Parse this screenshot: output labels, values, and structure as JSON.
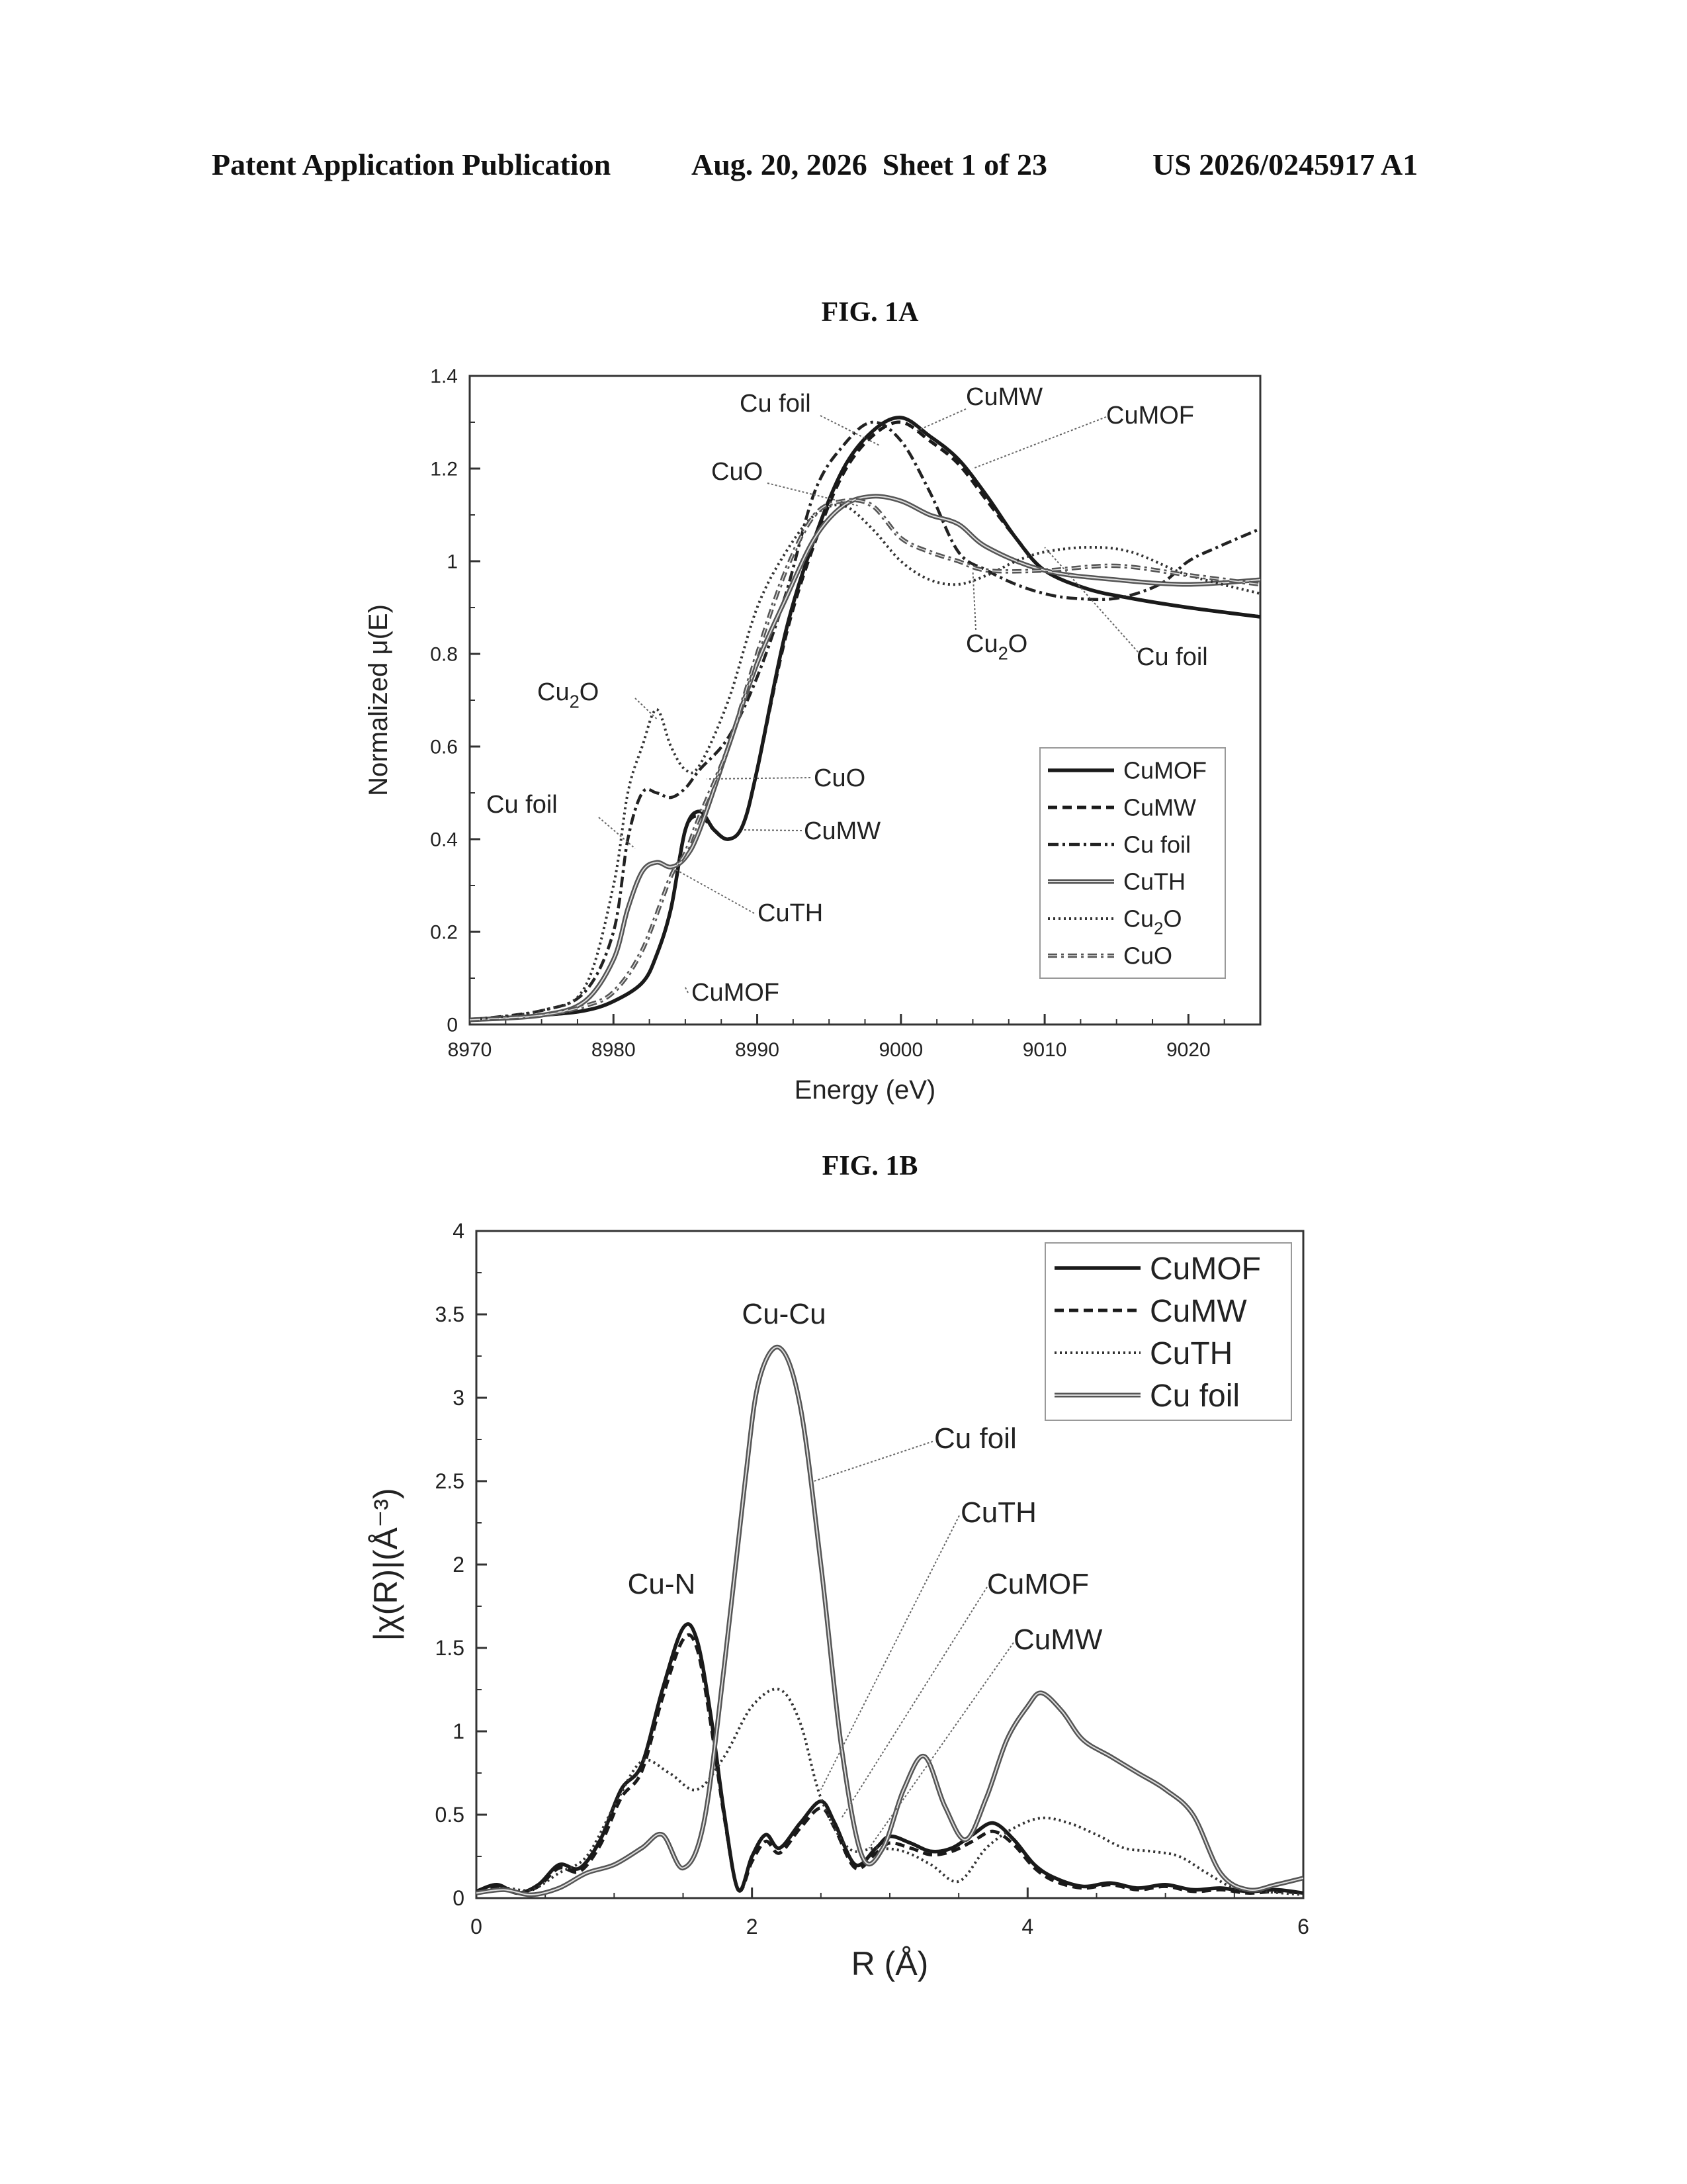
{
  "header": {
    "left": "Patent Application Publication",
    "center": "Aug. 20, 2026  Sheet 1 of 23",
    "right": "US 2026/0245917 A1"
  },
  "figures": {
    "fig1a_title": "FIG. 1A",
    "fig1b_title": "FIG. 1B"
  },
  "chart_data": [
    {
      "id": "fig1a",
      "type": "line",
      "xlabel": "Energy (eV)",
      "ylabel": "Normalized μ(E)",
      "xlim": [
        8970,
        9025
      ],
      "ylim": [
        0,
        1.4
      ],
      "xticks": [
        8970,
        8980,
        8990,
        9000,
        9010,
        9020
      ],
      "yticks": [
        0,
        0.2,
        0.4,
        0.6,
        0.8,
        1,
        1.2,
        1.4
      ],
      "legend": "bottom-right",
      "series": [
        {
          "name": "CuMOF",
          "style": "solid-thick",
          "x": [
            8970,
            8975,
            8978,
            8980,
            8982,
            8983,
            8984,
            8985,
            8986,
            8987,
            8988,
            8989,
            8990,
            8992,
            8994,
            8996,
            8998,
            9000,
            9002,
            9004,
            9006,
            9008,
            9010,
            9013,
            9016,
            9020,
            9025
          ],
          "y": [
            0.01,
            0.02,
            0.03,
            0.05,
            0.09,
            0.15,
            0.25,
            0.42,
            0.46,
            0.42,
            0.4,
            0.43,
            0.55,
            0.85,
            1.05,
            1.2,
            1.28,
            1.31,
            1.27,
            1.22,
            1.14,
            1.05,
            0.98,
            0.94,
            0.92,
            0.9,
            0.88
          ]
        },
        {
          "name": "CuMW",
          "style": "dashed-thick",
          "x": [
            8970,
            8975,
            8978,
            8980,
            8982,
            8983,
            8984,
            8985,
            8986,
            8987,
            8988,
            8989,
            8990,
            8992,
            8994,
            8996,
            8998,
            9000,
            9002,
            9004,
            9006,
            9008,
            9010,
            9013,
            9016,
            9020,
            9025
          ],
          "y": [
            0.01,
            0.02,
            0.03,
            0.05,
            0.09,
            0.15,
            0.25,
            0.42,
            0.45,
            0.42,
            0.4,
            0.43,
            0.55,
            0.84,
            1.04,
            1.19,
            1.27,
            1.3,
            1.26,
            1.21,
            1.13,
            1.05,
            0.98,
            0.94,
            0.92,
            0.9,
            0.88
          ]
        },
        {
          "name": "Cu foil",
          "style": "dashdot",
          "x": [
            8970,
            8975,
            8978,
            8980,
            8981,
            8982,
            8983,
            8984,
            8985,
            8986,
            8988,
            8990,
            8992,
            8994,
            8996,
            8998,
            9000,
            9002,
            9004,
            9006,
            9008,
            9010,
            9012,
            9015,
            9018,
            9020,
            9022,
            9025
          ],
          "y": [
            0.01,
            0.03,
            0.07,
            0.2,
            0.4,
            0.5,
            0.5,
            0.49,
            0.51,
            0.55,
            0.62,
            0.75,
            0.93,
            1.15,
            1.25,
            1.3,
            1.26,
            1.15,
            1.02,
            0.98,
            0.95,
            0.93,
            0.92,
            0.92,
            0.95,
            1.0,
            1.03,
            1.07
          ]
        },
        {
          "name": "CuTH",
          "style": "solid-double",
          "x": [
            8970,
            8975,
            8978,
            8980,
            8981,
            8982,
            8983,
            8984,
            8985,
            8986,
            8988,
            8990,
            8992,
            8994,
            8996,
            8998,
            9000,
            9002,
            9004,
            9006,
            9010,
            9015,
            9020,
            9025
          ],
          "y": [
            0.01,
            0.02,
            0.05,
            0.14,
            0.25,
            0.33,
            0.35,
            0.34,
            0.36,
            0.42,
            0.6,
            0.78,
            0.92,
            1.05,
            1.12,
            1.14,
            1.13,
            1.1,
            1.08,
            1.03,
            0.98,
            0.96,
            0.95,
            0.96
          ]
        },
        {
          "name": "Cu2O",
          "style": "dotted",
          "x": [
            8970,
            8975,
            8978,
            8980,
            8981,
            8982,
            8983,
            8984,
            8985,
            8986,
            8988,
            8990,
            8992,
            8994,
            8996,
            8998,
            9000,
            9002,
            9004,
            9006,
            9008,
            9010,
            9013,
            9016,
            9020,
            9025
          ],
          "y": [
            0.01,
            0.03,
            0.08,
            0.3,
            0.5,
            0.6,
            0.68,
            0.6,
            0.55,
            0.56,
            0.7,
            0.9,
            1.02,
            1.1,
            1.12,
            1.07,
            1.0,
            0.96,
            0.95,
            0.97,
            1.0,
            1.02,
            1.03,
            1.02,
            0.97,
            0.93
          ]
        },
        {
          "name": "CuO",
          "style": "dashdot-double",
          "x": [
            8970,
            8975,
            8978,
            8980,
            8982,
            8984,
            8985,
            8986,
            8988,
            8990,
            8992,
            8994,
            8996,
            8998,
            9000,
            9002,
            9004,
            9006,
            9010,
            9015,
            9020,
            9025
          ],
          "y": [
            0.01,
            0.02,
            0.04,
            0.07,
            0.16,
            0.32,
            0.37,
            0.45,
            0.6,
            0.8,
            0.98,
            1.1,
            1.13,
            1.12,
            1.05,
            1.02,
            1.0,
            0.98,
            0.98,
            0.99,
            0.97,
            0.95
          ]
        }
      ],
      "annotations": [
        "Cu foil",
        "CuMW",
        "CuMOF",
        "CuO",
        "Cu2O",
        "Cu foil",
        "Cu2O",
        "Cu foil",
        "CuO",
        "CuMW",
        "CuTH",
        "CuMOF"
      ]
    },
    {
      "id": "fig1b",
      "type": "line",
      "xlabel": "R (Å)",
      "ylabel": "|χ(R)|(Å⁻³)",
      "xlim": [
        0,
        6
      ],
      "ylim": [
        0,
        4
      ],
      "xticks": [
        0,
        2,
        4,
        6
      ],
      "yticks": [
        0,
        0.5,
        1,
        1.5,
        2,
        2.5,
        3,
        3.5,
        4
      ],
      "legend": "top-right",
      "series": [
        {
          "name": "CuMOF",
          "style": "solid-thick",
          "x": [
            0,
            0.15,
            0.3,
            0.45,
            0.6,
            0.75,
            0.9,
            1.05,
            1.2,
            1.35,
            1.5,
            1.6,
            1.7,
            1.8,
            1.9,
            2.0,
            2.1,
            2.2,
            2.35,
            2.5,
            2.6,
            2.75,
            2.9,
            3.0,
            3.15,
            3.3,
            3.45,
            3.6,
            3.75,
            3.9,
            4.05,
            4.2,
            4.4,
            4.6,
            4.8,
            5.0,
            5.2,
            5.4,
            5.6,
            5.8,
            6.0
          ],
          "y": [
            0.04,
            0.08,
            0.03,
            0.08,
            0.2,
            0.18,
            0.35,
            0.65,
            0.8,
            1.25,
            1.62,
            1.55,
            1.1,
            0.5,
            0.05,
            0.25,
            0.38,
            0.3,
            0.45,
            0.58,
            0.45,
            0.2,
            0.3,
            0.37,
            0.33,
            0.28,
            0.3,
            0.38,
            0.45,
            0.35,
            0.2,
            0.12,
            0.07,
            0.09,
            0.06,
            0.08,
            0.05,
            0.06,
            0.04,
            0.05,
            0.03
          ]
        },
        {
          "name": "CuMW",
          "style": "dashed-thick",
          "x": [
            0,
            0.15,
            0.3,
            0.45,
            0.6,
            0.75,
            0.9,
            1.05,
            1.2,
            1.35,
            1.5,
            1.6,
            1.7,
            1.8,
            1.9,
            2.0,
            2.1,
            2.2,
            2.35,
            2.5,
            2.6,
            2.75,
            2.9,
            3.0,
            3.15,
            3.3,
            3.45,
            3.6,
            3.75,
            3.9,
            4.05,
            4.2,
            4.4,
            4.6,
            4.8,
            5.0,
            5.2,
            5.4,
            5.6,
            5.8,
            6.0
          ],
          "y": [
            0.04,
            0.07,
            0.03,
            0.07,
            0.18,
            0.16,
            0.32,
            0.6,
            0.76,
            1.2,
            1.55,
            1.5,
            1.05,
            0.48,
            0.05,
            0.22,
            0.34,
            0.27,
            0.42,
            0.54,
            0.42,
            0.18,
            0.27,
            0.33,
            0.3,
            0.26,
            0.28,
            0.34,
            0.4,
            0.32,
            0.18,
            0.1,
            0.06,
            0.08,
            0.05,
            0.07,
            0.04,
            0.05,
            0.03,
            0.04,
            0.03
          ]
        },
        {
          "name": "CuTH",
          "style": "dotted",
          "x": [
            0,
            0.2,
            0.4,
            0.6,
            0.8,
            1.0,
            1.2,
            1.4,
            1.6,
            1.8,
            2.0,
            2.2,
            2.35,
            2.5,
            2.7,
            2.9,
            3.1,
            3.3,
            3.5,
            3.7,
            3.9,
            4.1,
            4.3,
            4.5,
            4.7,
            4.9,
            5.1,
            5.3,
            5.5,
            5.7,
            6.0
          ],
          "y": [
            0.03,
            0.06,
            0.05,
            0.15,
            0.25,
            0.55,
            0.82,
            0.75,
            0.65,
            0.85,
            1.15,
            1.25,
            1.05,
            0.6,
            0.3,
            0.3,
            0.28,
            0.2,
            0.1,
            0.3,
            0.42,
            0.48,
            0.45,
            0.38,
            0.3,
            0.28,
            0.25,
            0.15,
            0.06,
            0.04,
            0.02
          ]
        },
        {
          "name": "Cu foil",
          "style": "solid-double",
          "x": [
            0,
            0.2,
            0.4,
            0.6,
            0.8,
            1.0,
            1.2,
            1.35,
            1.5,
            1.65,
            1.8,
            1.95,
            2.05,
            2.2,
            2.35,
            2.5,
            2.65,
            2.8,
            2.95,
            3.1,
            3.25,
            3.4,
            3.55,
            3.7,
            3.85,
            4.0,
            4.1,
            4.25,
            4.4,
            4.6,
            4.8,
            5.0,
            5.2,
            5.4,
            5.6,
            5.8,
            6.0
          ],
          "y": [
            0.03,
            0.05,
            0.02,
            0.06,
            0.15,
            0.2,
            0.3,
            0.38,
            0.18,
            0.45,
            1.4,
            2.5,
            3.1,
            3.3,
            2.95,
            2.0,
            0.9,
            0.25,
            0.3,
            0.65,
            0.85,
            0.55,
            0.35,
            0.6,
            0.95,
            1.15,
            1.23,
            1.12,
            0.95,
            0.85,
            0.75,
            0.65,
            0.5,
            0.15,
            0.05,
            0.08,
            0.12
          ]
        }
      ],
      "annotations": [
        "Cu-Cu",
        "Cu-N",
        "Cu foil",
        "CuTH",
        "CuMOF",
        "CuMW"
      ]
    }
  ],
  "labels": {
    "fig1a": {
      "cu_foil_top": "Cu foil",
      "cumw_top": "CuMW",
      "cumof_top": "CuMOF",
      "cuo_top": "CuO",
      "cu2o_mid": "Cu2O",
      "cu_foil_right": "Cu foil",
      "cu2o_left": "Cu2O",
      "cu_foil_left": "Cu foil",
      "cuo_mid": "CuO",
      "cumw_mid": "CuMW",
      "cuth_mid": "CuTH",
      "cumof_bottom": "CuMOF"
    },
    "fig1b": {
      "cu_cu": "Cu-Cu",
      "cu_n": "Cu-N",
      "cu_foil": "Cu foil",
      "cuth": "CuTH",
      "cumof": "CuMOF",
      "cumw": "CuMW"
    }
  }
}
